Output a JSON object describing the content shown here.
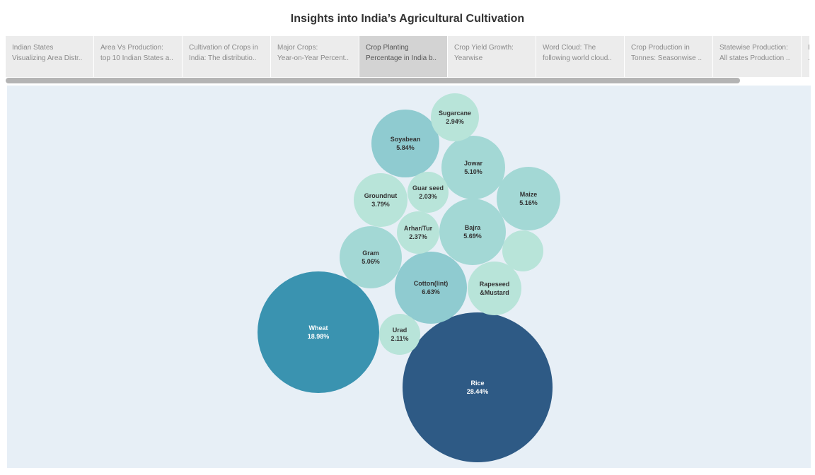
{
  "title": "Insights into India’s Agricultural Cultivation",
  "tabs": [
    {
      "line1": "Indian States",
      "line2": "Visualizing Area Distr..",
      "active": false
    },
    {
      "line1": "Area Vs Production:",
      "line2": "top 10 Indian States a..",
      "active": false
    },
    {
      "line1": "Cultivation of Crops in",
      "line2": "India: The distributio..",
      "active": false
    },
    {
      "line1": "Major Crops:",
      "line2": "Year-on-Year Percent..",
      "active": false
    },
    {
      "line1": "Crop Planting",
      "line2": "Percentage in India b..",
      "active": true
    },
    {
      "line1": "Crop Yield Growth:",
      "line2": "Yearwise",
      "active": false
    },
    {
      "line1": "Word Cloud: The",
      "line2": "following world cloud..",
      "active": false
    },
    {
      "line1": "Crop Production in",
      "line2": "Tonnes: Seasonwise ..",
      "active": false
    },
    {
      "line1": "Statewise Production:",
      "line2": "All states Production ..",
      "active": false
    },
    {
      "line1": "I",
      "line2": ".",
      "active": false
    }
  ],
  "colors": {
    "low": "#b8e4d9",
    "mid": "#a3d8d5",
    "teal": "#8fcbd0",
    "wheat": "#3a93b0",
    "rice": "#2e5a85",
    "background": "#e7eff6"
  },
  "chart_data": {
    "type": "bubble",
    "title": "",
    "series": [
      {
        "name": "Rice",
        "label": "28.44%",
        "value": 28.44
      },
      {
        "name": "Wheat",
        "label": "18.98%",
        "value": 18.98
      },
      {
        "name": "Cotton(lint)",
        "label": "6.63%",
        "value": 6.63
      },
      {
        "name": "Soyabean",
        "label": "5.84%",
        "value": 5.84
      },
      {
        "name": "Bajra",
        "label": "5.69%",
        "value": 5.69
      },
      {
        "name": "Maize",
        "label": "5.16%",
        "value": 5.16
      },
      {
        "name": "Jowar",
        "label": "5.10%",
        "value": 5.1
      },
      {
        "name": "Gram",
        "label": "5.06%",
        "value": 5.06
      },
      {
        "name": "Rapeseed &Mustard",
        "label": "",
        "value": 4.0
      },
      {
        "name": "Groundnut",
        "label": "3.79%",
        "value": 3.79
      },
      {
        "name": "",
        "label": "",
        "value": 2.4
      },
      {
        "name": "Sugarcane",
        "label": "2.94%",
        "value": 2.94
      },
      {
        "name": "Arhar/Tur",
        "label": "2.37%",
        "value": 2.37
      },
      {
        "name": "Urad",
        "label": "2.11%",
        "value": 2.11
      },
      {
        "name": "Guar seed",
        "label": "2.03%",
        "value": 2.03
      }
    ]
  }
}
